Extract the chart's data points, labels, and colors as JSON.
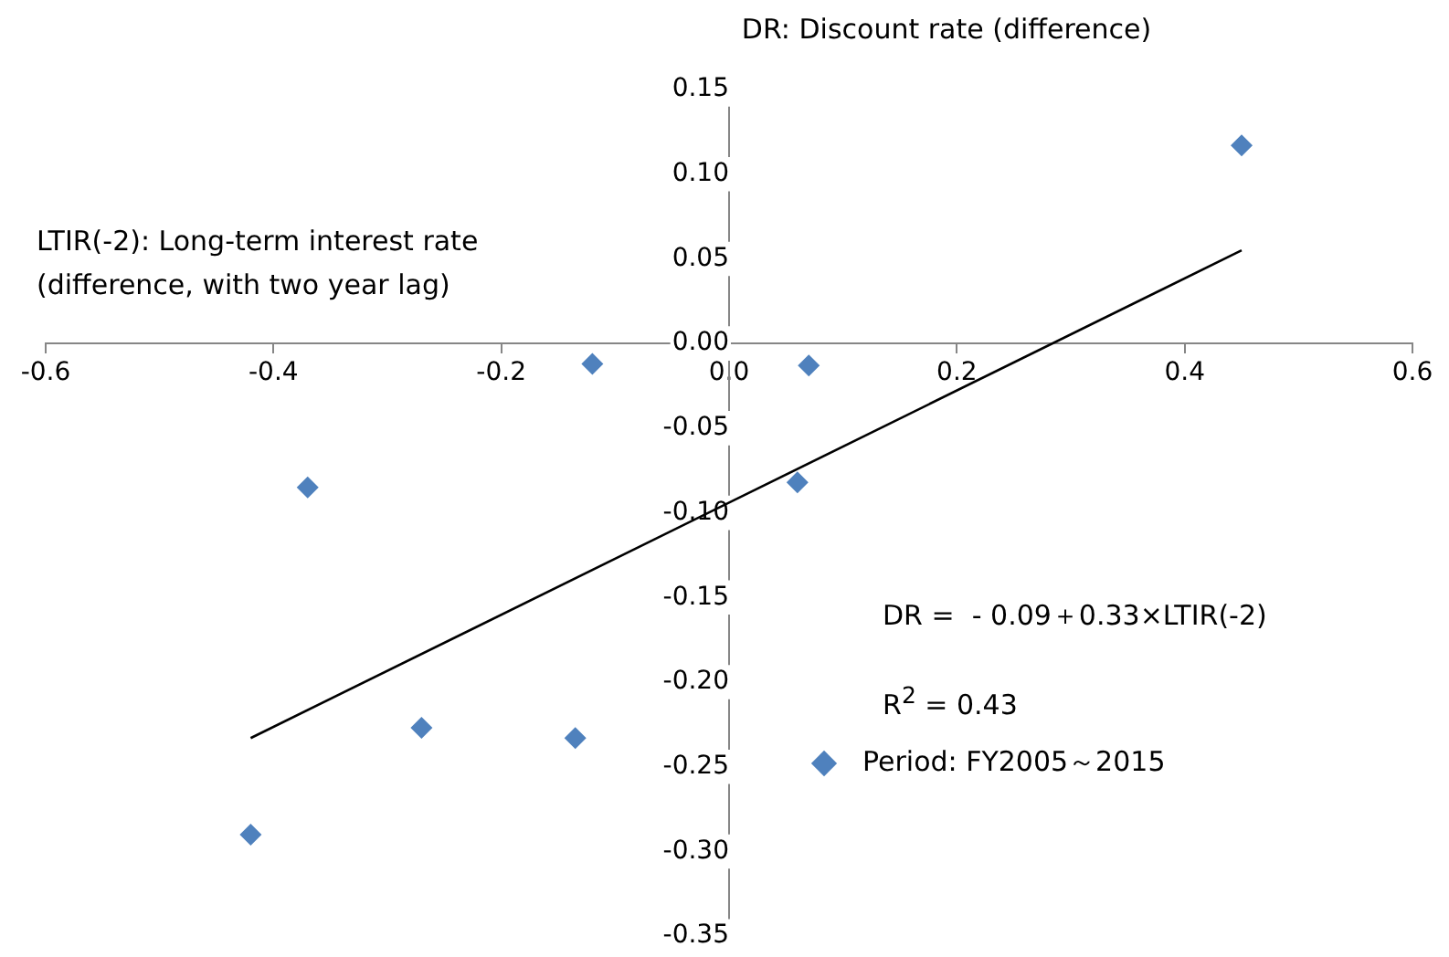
{
  "chart_data": {
    "type": "scatter",
    "xlabel": "LTIR(-2): Long-term interest rate\n(difference, with two year lag)",
    "ylabel": "DR: Discount rate (difference)",
    "x": [
      0.45,
      -0.12,
      0.07,
      -0.37,
      0.06,
      -0.27,
      -0.135,
      -0.42
    ],
    "series": [
      {
        "name": "Period: FY2005～2015",
        "color": "#4f81bd",
        "marker": "diamond",
        "values": [
          0.117,
          -0.012,
          -0.013,
          -0.085,
          -0.082,
          -0.227,
          -0.233,
          -0.29
        ]
      },
      {
        "type": "line",
        "color": "#000000",
        "marker": "none",
        "x": [
          -0.42,
          0.45
        ],
        "values": [
          -0.233,
          0.055
        ]
      }
    ],
    "xlim": [
      -0.6,
      0.6
    ],
    "xticks": [
      -0.6,
      -0.4,
      -0.2,
      {
        "value": 0,
        "label": "0.0"
      },
      0.2,
      0.4,
      0.6
    ],
    "ylim": [
      -0.35,
      0.15
    ],
    "yticks": [
      -0.35,
      {
        "value": -0.3,
        "label": "-0.30"
      },
      -0.25,
      {
        "value": -0.2,
        "label": "-0.20"
      },
      -0.15,
      {
        "value": -0.1,
        "label": "-0.10"
      },
      -0.05,
      {
        "value": 0,
        "label": "0.00"
      },
      0.05,
      {
        "value": 0.1,
        "label": "0.10"
      },
      0.15
    ],
    "annotations": [
      "DR =  - 0.09＋0.33×LTIR(-2)",
      "R$^{2}$ = 0.43"
    ],
    "legend": "bottom right",
    "grid": false
  }
}
